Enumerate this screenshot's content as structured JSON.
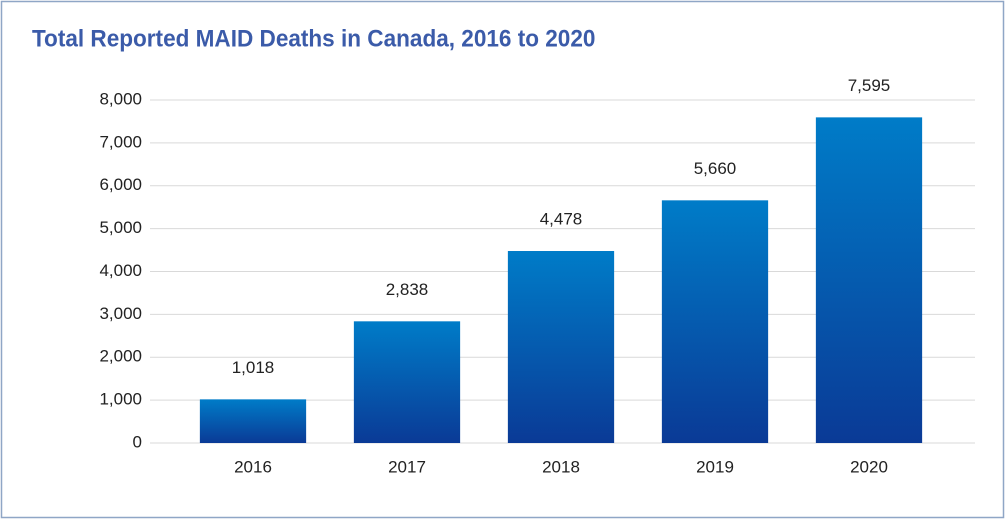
{
  "chart_data": {
    "type": "bar",
    "title": "Total Reported MAID Deaths in Canada, 2016 to 2020",
    "categories": [
      "2016",
      "2017",
      "2018",
      "2019",
      "2020"
    ],
    "values": [
      1018,
      2838,
      4478,
      5660,
      7595
    ],
    "value_labels": [
      "1,018",
      "2,838",
      "4,478",
      "5,660",
      "7,595"
    ],
    "color": "#0a3a96",
    "ylim": [
      0,
      8000
    ],
    "yticks": [
      0,
      {
        "value": 1000,
        "label": "1,000"
      },
      {
        "value": 2000,
        "label": "2,000"
      },
      {
        "value": 3000,
        "label": "3,000"
      },
      {
        "value": 4000,
        "label": "4,000"
      },
      {
        "value": 5000,
        "label": "5,000"
      },
      {
        "value": 6000,
        "label": "6,000"
      },
      {
        "value": 7000,
        "label": "7,000"
      },
      {
        "value": 8000,
        "label": "8,000"
      }
    ],
    "grid": true
  }
}
